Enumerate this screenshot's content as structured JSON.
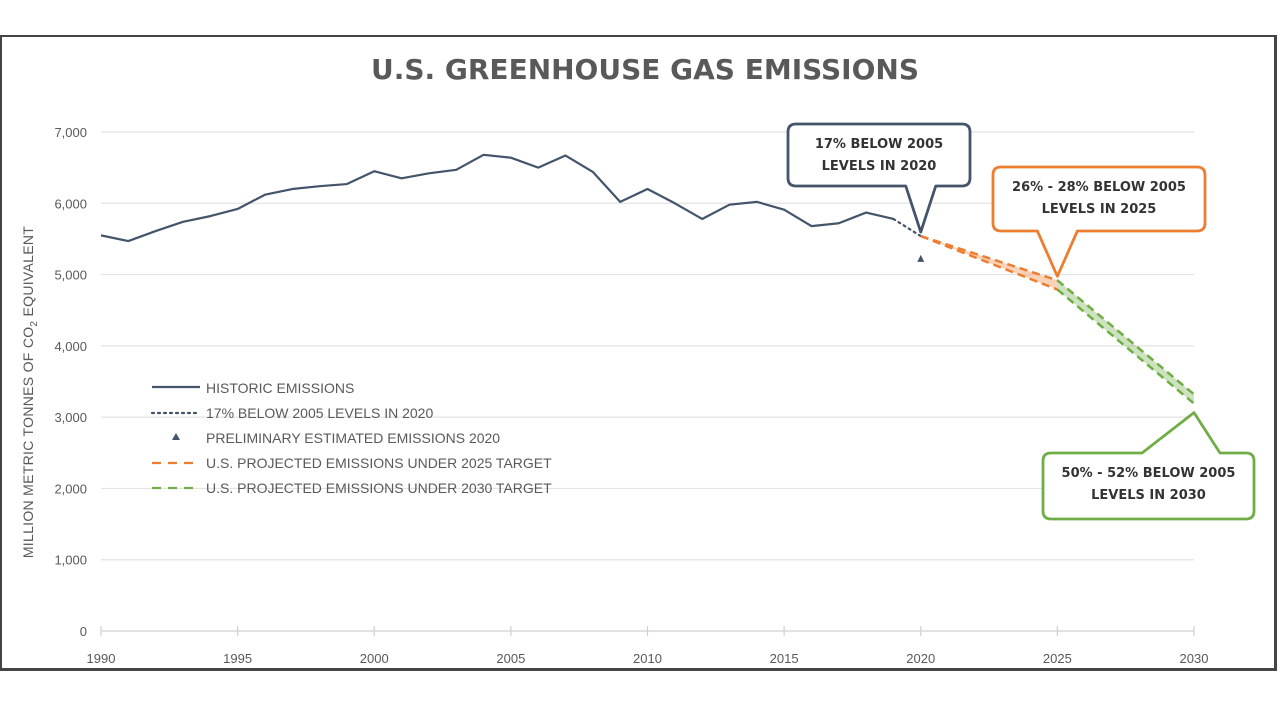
{
  "chart_data": {
    "type": "line",
    "title": "U.S. GREENHOUSE GAS EMISSIONS",
    "xlabel": "",
    "ylabel": "MILLION METRIC TONNES OF CO2 EQUIVALENT",
    "ylabel_parts": {
      "before": "MILLION METRIC TONNES OF CO",
      "subscript": "2",
      "after": " EQUIVALENT"
    },
    "xlim": [
      1990,
      2030
    ],
    "ylim": [
      0,
      7000
    ],
    "x_ticks": [
      1990,
      1995,
      2000,
      2005,
      2010,
      2015,
      2020,
      2025,
      2030
    ],
    "x_tick_labels": [
      "1990",
      "1995",
      "2000",
      "2005",
      "2010",
      "2015",
      "2020",
      "2025",
      "2030"
    ],
    "y_ticks": [
      0,
      1000,
      2000,
      3000,
      4000,
      5000,
      6000,
      7000
    ],
    "y_tick_labels": [
      "0",
      "1,000",
      "2,000",
      "3,000",
      "4,000",
      "5,000",
      "6,000",
      "7,000"
    ],
    "grid": "horizontal",
    "legend_position": "center-left",
    "series": [
      {
        "name": "HISTORIC EMISSIONS",
        "style": "solid",
        "color": "#44546A",
        "x": [
          1990,
          1991,
          1992,
          1993,
          1994,
          1995,
          1996,
          1997,
          1998,
          1999,
          2000,
          2001,
          2002,
          2003,
          2004,
          2005,
          2006,
          2007,
          2008,
          2009,
          2010,
          2011,
          2012,
          2013,
          2014,
          2015,
          2016,
          2017,
          2018,
          2019
        ],
        "values": [
          5550,
          5470,
          5610,
          5740,
          5820,
          5920,
          6120,
          6200,
          6240,
          6270,
          6450,
          6350,
          6420,
          6470,
          6680,
          6640,
          6500,
          6670,
          6440,
          6020,
          6200,
          6000,
          5780,
          5980,
          6020,
          5910,
          5680,
          5720,
          5870,
          5780
        ]
      },
      {
        "name": "17% BELOW 2005 LEVELS IN 2020",
        "style": "dotted",
        "color": "#44546A",
        "x": [
          2019,
          2020
        ],
        "values": [
          5780,
          5540
        ]
      },
      {
        "name": "PRELIMINARY ESTIMATED EMISSIONS 2020",
        "style": "marker-triangle",
        "color": "#44546A",
        "x": [
          2020
        ],
        "values": [
          5220
        ]
      },
      {
        "name": "U.S. PROJECTED EMISSIONS UNDER 2025 TARGET",
        "style": "dashed",
        "color": "#ED7D31",
        "x": [
          2020,
          2025
        ],
        "values_upper": [
          5540,
          4920
        ],
        "values_lower": [
          5540,
          4790
        ]
      },
      {
        "name": "U.S. PROJECTED EMISSIONS UNDER 2030 TARGET",
        "style": "dashed",
        "color": "#70AD47",
        "x": [
          2025,
          2030
        ],
        "values_upper": [
          4920,
          3320
        ],
        "values_lower": [
          4790,
          3190
        ]
      }
    ],
    "annotations": [
      {
        "lines": [
          "17% BELOW 2005",
          "LEVELS IN 2020"
        ],
        "x": 2020,
        "y": 5540,
        "color": "#44546A",
        "placement": "above"
      },
      {
        "lines": [
          "26% - 28% BELOW 2005",
          "LEVELS IN 2025"
        ],
        "x": 2025,
        "y": 4920,
        "color": "#ED7D31",
        "placement": "above"
      },
      {
        "lines": [
          "50% - 52% BELOW 2005",
          "LEVELS IN 2030"
        ],
        "x": 2030,
        "y": 3190,
        "color": "#70AD47",
        "placement": "below"
      }
    ]
  }
}
